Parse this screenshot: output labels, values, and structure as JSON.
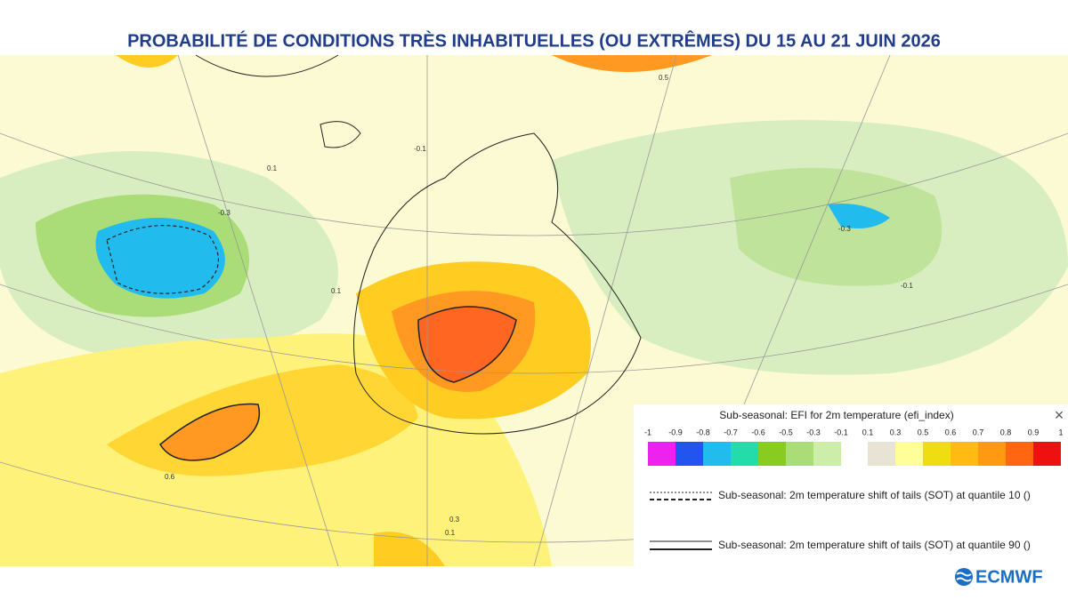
{
  "header": {
    "title": "PROBABILITÉ DE CONDITIONS TRÈS INHABITUELLES (OU EXTRÊMES) DU 15  AU 21 JUIN 2026"
  },
  "map": {
    "labels": [
      "0.1",
      "-0.3",
      "-0.1",
      "0.6",
      "0.1",
      "-0.3",
      "0.3",
      "0.5",
      "-0.1",
      "0.1"
    ]
  },
  "legend": {
    "title": "Sub-seasonal: EFI for 2m temperature (efi_index)",
    "close": "×",
    "negative": {
      "labels": [
        "-1",
        "-0.9",
        "-0.8",
        "-0.7",
        "-0.6",
        "-0.5",
        "-0.3",
        "-0.1"
      ],
      "colors": [
        "#ee22ee",
        "#2255ee",
        "#22bbee",
        "#22ddaa",
        "#88cc22",
        "#aadd77",
        "#cceeaa"
      ]
    },
    "positive": {
      "labels": [
        "0.1",
        "0.3",
        "0.5",
        "0.6",
        "0.7",
        "0.8",
        "0.9",
        "1"
      ],
      "colors": [
        "#e8e4d4",
        "#ffff99",
        "#eedd11",
        "#ffbb11",
        "#ff9911",
        "#ff6611",
        "#ee1111"
      ]
    },
    "sot10": "Sub-seasonal: 2m temperature shift of tails (SOT) at quantile 10 ()",
    "sot90": "Sub-seasonal: 2m temperature shift of tails (SOT) at quantile 90 ()"
  },
  "logo": "ECMWF"
}
